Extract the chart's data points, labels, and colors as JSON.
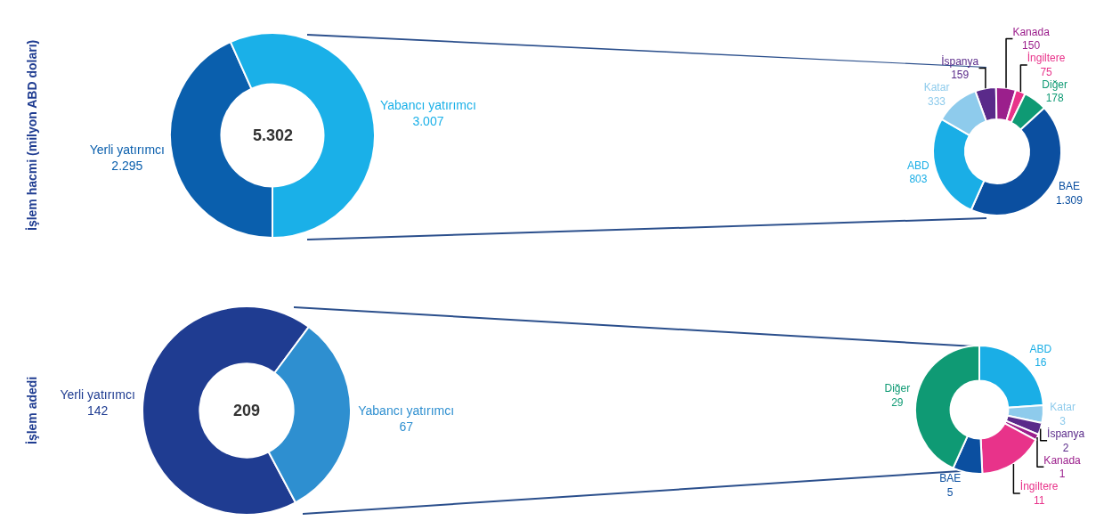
{
  "chart_data": [
    {
      "type": "donut",
      "ylabel": "İşlem hacmi (milyon ABD doları)",
      "categories": [
        "Yerli yatırımcı",
        "Yabancı yatırımcı"
      ],
      "values": [
        2295,
        3007
      ],
      "value_labels": [
        "2.295",
        "3.007"
      ],
      "colors": [
        "#0a5fad",
        "#1ab0e8"
      ],
      "annotations": [
        "5.302"
      ],
      "legend": false
    },
    {
      "type": "donut",
      "categories": [
        "İspanya",
        "Kanada",
        "İngiltere",
        "Diğer",
        "BAE",
        "ABD",
        "Katar"
      ],
      "values": [
        159,
        150,
        75,
        178,
        1309,
        803,
        333
      ],
      "value_labels": [
        "159",
        "150",
        "75",
        "178",
        "1.309",
        "803",
        "333"
      ],
      "colors": [
        "#5a2a8a",
        "#9b1f8c",
        "#e8338a",
        "#0f9a74",
        "#0b4fa0",
        "#1aaee6",
        "#8ecbec"
      ],
      "legend": false
    },
    {
      "type": "donut",
      "ylabel": "İşlem adedi",
      "categories": [
        "Yerli yatırımcı",
        "Yabancı yatırımcı"
      ],
      "values": [
        142,
        67
      ],
      "value_labels": [
        "142",
        "67"
      ],
      "colors": [
        "#1f3c91",
        "#2e8fd0"
      ],
      "annotations": [
        "209"
      ],
      "legend": false
    },
    {
      "type": "donut",
      "categories": [
        "ABD",
        "Katar",
        "İspanya",
        "Kanada",
        "İngiltere",
        "BAE",
        "Diğer"
      ],
      "values": [
        16,
        3,
        2,
        1,
        11,
        5,
        29
      ],
      "value_labels": [
        "16",
        "3",
        "2",
        "1",
        "11",
        "5",
        "29"
      ],
      "colors": [
        "#1aaee6",
        "#8ecbec",
        "#5a2a8a",
        "#9b1f8c",
        "#e8338a",
        "#0b4fa0",
        "#0f9a74"
      ],
      "legend": false
    }
  ]
}
